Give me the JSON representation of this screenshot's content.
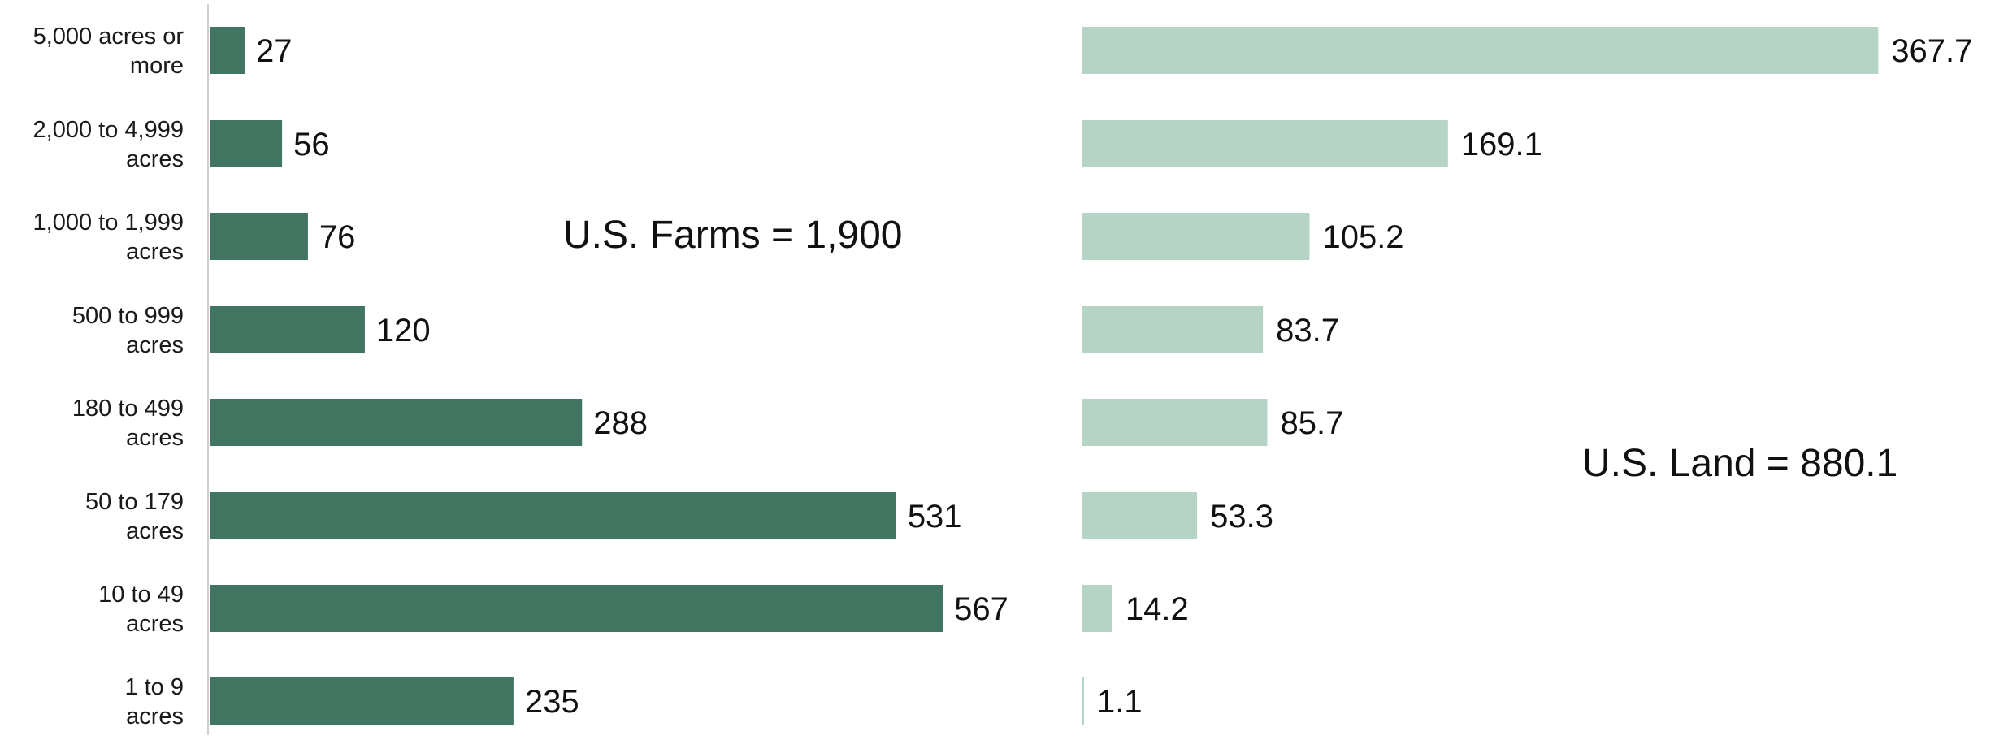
{
  "chart_data": [
    {
      "type": "bar",
      "orientation": "horizontal",
      "categories": [
        "5,000 acres or more",
        "2,000 to 4,999 acres",
        "1,000 to 1,999 acres",
        "500 to 999 acres",
        "180 to 499 acres",
        "50 to 179 acres",
        "10 to 49 acres",
        "1 to 9 acres"
      ],
      "category_lines": [
        [
          "5,000 acres or",
          "more"
        ],
        [
          "2,000 to 4,999",
          "acres"
        ],
        [
          "1,000 to 1,999",
          "acres"
        ],
        [
          "500 to 999",
          "acres"
        ],
        [
          "180 to 499",
          "acres"
        ],
        [
          "50 to 179",
          "acres"
        ],
        [
          "10 to 49",
          "acres"
        ],
        [
          "1 to 9",
          "acres"
        ]
      ],
      "values": [
        27,
        56,
        76,
        120,
        288,
        531,
        567,
        235
      ],
      "value_labels": [
        "27",
        "56",
        "76",
        "120",
        "288",
        "531",
        "567",
        "235"
      ],
      "annotation": "U.S. Farms = 1,900",
      "color": "#427561",
      "xlim": [
        0,
        600
      ],
      "grid": false
    },
    {
      "type": "bar",
      "orientation": "horizontal",
      "categories": [
        "5,000 acres or more",
        "2,000 to 4,999 acres",
        "1,000 to 1,999 acres",
        "500 to 999 acres",
        "180 to 499 acres",
        "50 to 179 acres",
        "10 to 49 acres",
        "1 to 9 acres"
      ],
      "values": [
        367.7,
        169.1,
        105.2,
        83.7,
        85.7,
        53.3,
        14.2,
        1.1
      ],
      "value_labels": [
        "367.7",
        "169.1",
        "105.2",
        "83.7",
        "85.7",
        "53.3",
        "14.2",
        "1.1"
      ],
      "annotation": "U.S. Land = 880.1",
      "color": "#b5d4c5",
      "xlim": [
        0,
        400
      ],
      "grid": false
    }
  ]
}
